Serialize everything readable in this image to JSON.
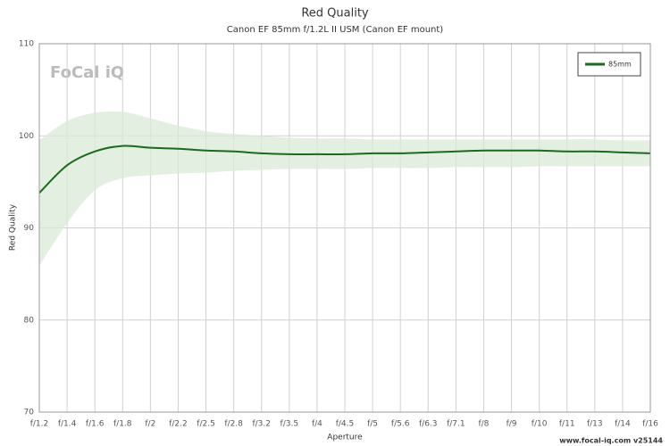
{
  "chart_data": {
    "type": "line",
    "title": "Red Quality",
    "subtitle": "Canon EF 85mm f/1.2L II USM (Canon EF mount)",
    "x_label": "Aperture",
    "y_label": "Red Quality",
    "logo": "FoCal iQ",
    "footer": "www.focal-iq.com  v25144",
    "categories": [
      "f/1.2",
      "f/1.4",
      "f/1.6",
      "f/1.8",
      "f/2",
      "f/2.2",
      "f/2.5",
      "f/2.8",
      "f/3.2",
      "f/3.5",
      "f/4",
      "f/4.5",
      "f/5",
      "f/5.6",
      "f/6.3",
      "f/7.1",
      "f/8",
      "f/9",
      "f/10",
      "f/11",
      "f/13",
      "f/14",
      "f/16"
    ],
    "series": [
      {
        "name": "85mm",
        "color": "#1a6b1a",
        "band_color": "#d9ead6",
        "values": [
          93.8,
          96.8,
          98.3,
          98.9,
          98.7,
          98.6,
          98.4,
          98.3,
          98.1,
          98.0,
          98.0,
          98.0,
          98.1,
          98.1,
          98.2,
          98.3,
          98.4,
          98.4,
          98.4,
          98.3,
          98.3,
          98.2,
          98.1
        ],
        "upper": [
          99.5,
          101.6,
          102.5,
          102.6,
          101.9,
          101.1,
          100.5,
          100.2,
          100.0,
          99.8,
          99.7,
          99.7,
          99.6,
          99.6,
          99.6,
          99.6,
          99.6,
          99.6,
          99.6,
          99.6,
          99.6,
          99.5,
          99.5
        ],
        "lower": [
          85.9,
          90.5,
          94.1,
          95.4,
          95.7,
          95.9,
          96.0,
          96.2,
          96.3,
          96.4,
          96.4,
          96.4,
          96.5,
          96.5,
          96.5,
          96.6,
          96.6,
          96.6,
          96.7,
          96.7,
          96.7,
          96.7,
          96.7
        ]
      }
    ],
    "ylim": [
      70,
      110
    ],
    "yticks": [
      70,
      80,
      90,
      100,
      110
    ],
    "grid": true,
    "legend": "top-right"
  }
}
